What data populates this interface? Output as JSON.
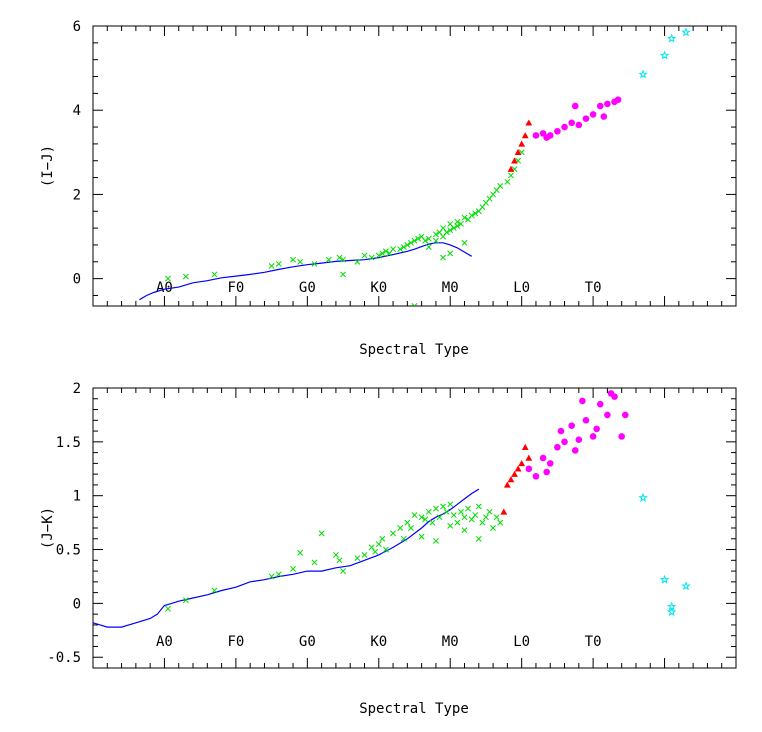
{
  "chart_data": [
    {
      "type": "scatter",
      "xlabel": "Spectral Type",
      "ylabel": "(I−J)",
      "ylim": [
        -0.65,
        6
      ],
      "yticks": [
        0,
        2,
        4,
        6
      ],
      "spectral_labels": [
        "A0",
        "F0",
        "G0",
        "K0",
        "M0",
        "L0",
        "T0"
      ],
      "spectral_label_y": -0.2,
      "series": [
        {
          "marker": "line",
          "color": "#0000ff",
          "x": [
            -3.5,
            -2.5,
            -1.5,
            0,
            2,
            4,
            6,
            8,
            10,
            12,
            14,
            16,
            18,
            20,
            22,
            24,
            26,
            28,
            30,
            32,
            34,
            35,
            36,
            37,
            38,
            39,
            40,
            41,
            42,
            43
          ],
          "y": [
            -0.5,
            -0.4,
            -0.33,
            -0.25,
            -0.2,
            -0.1,
            -0.05,
            0.02,
            0.06,
            0.1,
            0.15,
            0.22,
            0.28,
            0.33,
            0.37,
            0.41,
            0.43,
            0.45,
            0.5,
            0.57,
            0.65,
            0.7,
            0.76,
            0.82,
            0.85,
            0.85,
            0.8,
            0.73,
            0.63,
            0.53
          ]
        },
        {
          "marker": "cross",
          "color": "#00dd00",
          "x": [
            0.5,
            3,
            7,
            15,
            16,
            18,
            19,
            21,
            23,
            24.5,
            25,
            25,
            27,
            28,
            29,
            30,
            30.5,
            31,
            31.5,
            32,
            33,
            33.5,
            34,
            34.5,
            35,
            35.5,
            36,
            36.5,
            37,
            37,
            38,
            38,
            38.5,
            39,
            39,
            39.5,
            40,
            40,
            40.5,
            41,
            41,
            41.5,
            42,
            42.5,
            43,
            43.5,
            44,
            44.5,
            45,
            45.5,
            46,
            46.5,
            47,
            48,
            48.5,
            49,
            49.5,
            50,
            35,
            39,
            40,
            42
          ],
          "y": [
            0,
            0.05,
            0.1,
            0.3,
            0.35,
            0.45,
            0.4,
            0.35,
            0.45,
            0.5,
            0.45,
            0.1,
            0.4,
            0.55,
            0.5,
            0.55,
            0.6,
            0.65,
            0.6,
            0.7,
            0.7,
            0.75,
            0.8,
            0.85,
            0.9,
            0.95,
            1.0,
            0.9,
            0.95,
            0.75,
            1.05,
            0.9,
            1.1,
            1.0,
            1.2,
            1.1,
            1.15,
            1.3,
            1.2,
            1.25,
            1.35,
            1.3,
            1.45,
            1.4,
            1.5,
            1.55,
            1.6,
            1.7,
            1.8,
            1.9,
            2.0,
            2.1,
            2.2,
            2.3,
            2.45,
            2.6,
            2.8,
            3.0,
            -0.65,
            0.5,
            0.6,
            0.85
          ]
        },
        {
          "marker": "triangle",
          "color": "#ff0000",
          "x": [
            48.5,
            49,
            49.5,
            50,
            50.5,
            51
          ],
          "y": [
            2.6,
            2.8,
            3.0,
            3.2,
            3.4,
            3.7
          ]
        },
        {
          "marker": "circle",
          "color": "#ff00ff",
          "x": [
            52,
            53,
            54,
            55,
            56,
            57,
            58,
            59,
            60,
            61,
            62,
            63,
            63.5,
            53.5,
            57.5,
            61.5
          ],
          "y": [
            3.4,
            3.45,
            3.4,
            3.5,
            3.6,
            3.7,
            3.65,
            3.8,
            3.9,
            4.1,
            4.15,
            4.2,
            4.25,
            3.35,
            4.1,
            3.85
          ]
        },
        {
          "marker": "star",
          "color": "#00e5ee",
          "x": [
            67,
            70,
            71,
            73
          ],
          "y": [
            4.85,
            5.3,
            5.7,
            5.85
          ]
        }
      ]
    },
    {
      "type": "scatter",
      "xlabel": "Spectral Type",
      "ylabel": "(J−K)",
      "ylim": [
        -0.6,
        2
      ],
      "yticks": [
        -0.5,
        0,
        0.5,
        1,
        1.5,
        2
      ],
      "spectral_labels": [
        "A0",
        "F0",
        "G0",
        "K0",
        "M0",
        "L0",
        "T0"
      ],
      "spectral_label_y": -0.35,
      "series": [
        {
          "marker": "line",
          "color": "#0000ff",
          "x": [
            -10,
            -8,
            -6,
            -4,
            -2,
            -1,
            0,
            1,
            2,
            4,
            6,
            8,
            10,
            12,
            14,
            16,
            18,
            20,
            22,
            24,
            26,
            28,
            30,
            32,
            34,
            35,
            36,
            37,
            38,
            39,
            40,
            41,
            42,
            43,
            44
          ],
          "y": [
            -0.18,
            -0.22,
            -0.22,
            -0.18,
            -0.14,
            -0.1,
            -0.02,
            0.0,
            0.02,
            0.05,
            0.08,
            0.12,
            0.15,
            0.2,
            0.22,
            0.25,
            0.27,
            0.3,
            0.3,
            0.33,
            0.35,
            0.4,
            0.45,
            0.52,
            0.6,
            0.65,
            0.7,
            0.76,
            0.8,
            0.83,
            0.87,
            0.92,
            0.97,
            1.02,
            1.06
          ]
        },
        {
          "marker": "cross",
          "color": "#00dd00",
          "x": [
            0.5,
            3,
            7,
            15,
            16,
            18,
            19,
            21,
            22,
            24,
            24.5,
            25,
            27,
            28,
            29,
            29.5,
            30,
            30.5,
            31,
            32,
            33,
            33.5,
            34,
            34.5,
            35,
            36,
            36.5,
            37,
            37.5,
            38,
            38.5,
            39,
            39.5,
            40,
            40.5,
            41,
            41.5,
            42,
            42.5,
            43,
            43.5,
            44,
            44.5,
            45,
            45.5,
            46,
            46.5,
            47,
            36,
            38,
            40,
            42,
            44
          ],
          "y": [
            -0.05,
            0.03,
            0.12,
            0.25,
            0.27,
            0.32,
            0.47,
            0.38,
            0.65,
            0.45,
            0.4,
            0.3,
            0.42,
            0.45,
            0.52,
            0.48,
            0.55,
            0.6,
            0.5,
            0.65,
            0.7,
            0.6,
            0.75,
            0.7,
            0.82,
            0.8,
            0.78,
            0.85,
            0.75,
            0.88,
            0.8,
            0.9,
            0.85,
            0.92,
            0.82,
            0.75,
            0.85,
            0.8,
            0.88,
            0.78,
            0.82,
            0.9,
            0.75,
            0.8,
            0.85,
            0.7,
            0.8,
            0.75,
            0.62,
            0.58,
            0.72,
            0.68,
            0.6
          ]
        },
        {
          "marker": "triangle",
          "color": "#ff0000",
          "x": [
            47.5,
            48,
            48.5,
            49,
            49.5,
            50,
            50.5,
            51
          ],
          "y": [
            0.85,
            1.1,
            1.15,
            1.2,
            1.25,
            1.3,
            1.45,
            1.35
          ]
        },
        {
          "marker": "circle",
          "color": "#ff00ff",
          "x": [
            51,
            52,
            53,
            54,
            55,
            55.5,
            56,
            57,
            58,
            58.5,
            59,
            60,
            61,
            62,
            62.5,
            63,
            64,
            64.5,
            53.5,
            57.5,
            60.5
          ],
          "y": [
            1.25,
            1.18,
            1.35,
            1.3,
            1.45,
            1.6,
            1.5,
            1.65,
            1.52,
            1.88,
            1.7,
            1.55,
            1.85,
            1.75,
            1.95,
            1.92,
            1.55,
            1.75,
            1.22,
            1.42,
            1.62
          ]
        },
        {
          "marker": "star",
          "color": "#00e5ee",
          "x": [
            67,
            70,
            71,
            71,
            73
          ],
          "y": [
            0.98,
            0.22,
            -0.03,
            -0.08,
            0.16
          ]
        }
      ]
    }
  ]
}
